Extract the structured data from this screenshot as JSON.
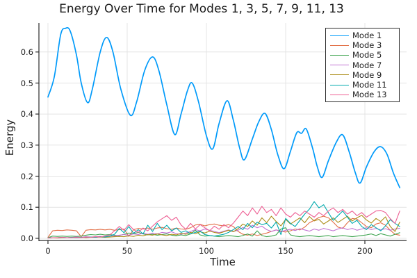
{
  "chart_data": {
    "type": "line",
    "title": "Energy Over Time for Modes 1, 3, 5, 7, 9, 11, 13",
    "xlabel": "Time",
    "ylabel": "Energy",
    "xlim": [
      -5.7,
      226.3
    ],
    "ylim": [
      -0.007,
      0.6935
    ],
    "grid": true,
    "legend_position": "top-right",
    "xticks": {
      "values": [
        0,
        50,
        100,
        150,
        200
      ],
      "labels": [
        "0",
        "50",
        "100",
        "150",
        "200"
      ]
    },
    "yticks": {
      "values": [
        0.0,
        0.1,
        0.2,
        0.3,
        0.4,
        0.5,
        0.6
      ],
      "labels": [
        "0.0",
        "0.1",
        "0.2",
        "0.3",
        "0.4",
        "0.5",
        "0.6"
      ]
    },
    "colors": {
      "grid": "#E4E4E4",
      "axis": "#2B2B2B",
      "text": "#1C1C1C",
      "background": "#FFFFFF"
    },
    "series": [
      {
        "name": "Mode 1",
        "color": "#009AFA",
        "line_width": 1.7,
        "smooth": true,
        "points": [
          [
            0,
            0.455
          ],
          [
            4,
            0.52
          ],
          [
            8,
            0.655
          ],
          [
            11,
            0.676
          ],
          [
            14,
            0.668
          ],
          [
            18,
            0.59
          ],
          [
            21,
            0.5
          ],
          [
            25,
            0.437
          ],
          [
            28,
            0.48
          ],
          [
            33,
            0.6
          ],
          [
            37,
            0.647
          ],
          [
            41,
            0.6
          ],
          [
            46,
            0.48
          ],
          [
            52,
            0.396
          ],
          [
            56,
            0.44
          ],
          [
            61,
            0.54
          ],
          [
            66,
            0.584
          ],
          [
            70,
            0.54
          ],
          [
            75,
            0.43
          ],
          [
            80,
            0.334
          ],
          [
            84,
            0.4
          ],
          [
            88,
            0.475
          ],
          [
            91,
            0.5
          ],
          [
            95,
            0.44
          ],
          [
            100,
            0.33
          ],
          [
            104,
            0.288
          ],
          [
            108,
            0.37
          ],
          [
            113,
            0.443
          ],
          [
            117,
            0.38
          ],
          [
            121,
            0.29
          ],
          [
            124,
            0.253
          ],
          [
            129,
            0.32
          ],
          [
            133,
            0.375
          ],
          [
            137,
            0.402
          ],
          [
            141,
            0.35
          ],
          [
            145,
            0.27
          ],
          [
            149,
            0.224
          ],
          [
            153,
            0.28
          ],
          [
            157,
            0.34
          ],
          [
            160,
            0.338
          ],
          [
            163,
            0.352
          ],
          [
            167,
            0.29
          ],
          [
            170,
            0.23
          ],
          [
            173,
            0.196
          ],
          [
            177,
            0.25
          ],
          [
            182,
            0.31
          ],
          [
            186,
            0.333
          ],
          [
            190,
            0.28
          ],
          [
            194,
            0.21
          ],
          [
            197,
            0.178
          ],
          [
            201,
            0.23
          ],
          [
            206,
            0.28
          ],
          [
            210,
            0.295
          ],
          [
            214,
            0.27
          ],
          [
            218,
            0.21
          ],
          [
            222,
            0.163
          ]
        ]
      },
      {
        "name": "Mode 3",
        "color": "#E26F46",
        "line_width": 1.1,
        "smooth": false,
        "t0": 0,
        "dt": 3,
        "values": [
          0.003,
          0.024,
          0.026,
          0.025,
          0.027,
          0.026,
          0.024,
          0.005,
          0.026,
          0.028,
          0.027,
          0.029,
          0.027,
          0.029,
          0.026,
          0.028,
          0.03,
          0.006,
          0.028,
          0.032,
          0.03,
          0.033,
          0.029,
          0.033,
          0.035,
          0.031,
          0.029,
          0.033,
          0.03,
          0.029,
          0.034,
          0.043,
          0.045,
          0.04,
          0.044,
          0.046,
          0.042,
          0.04,
          0.044,
          0.038,
          0.022,
          0.013,
          0.01,
          0.014,
          0.009,
          0.013,
          0.017,
          0.022,
          0.027,
          0.023,
          0.02,
          0.024,
          0.03,
          0.027,
          0.036,
          0.05,
          0.058,
          0.067,
          0.071,
          0.066,
          0.052,
          0.036,
          0.032,
          0.05,
          0.064,
          0.062,
          0.05,
          0.038,
          0.034,
          0.046,
          0.05,
          0.042,
          0.026,
          0.013,
          0.01
        ]
      },
      {
        "name": "Mode 5",
        "color": "#3DA44E",
        "line_width": 1.1,
        "smooth": false,
        "t0": 0,
        "dt": 3,
        "values": [
          0.002,
          0.007,
          0.006,
          0.007,
          0.006,
          0.007,
          0.006,
          0.007,
          0.01,
          0.012,
          0.011,
          0.013,
          0.011,
          0.012,
          0.01,
          0.009,
          0.013,
          0.017,
          0.015,
          0.019,
          0.014,
          0.011,
          0.013,
          0.01,
          0.012,
          0.014,
          0.01,
          0.008,
          0.011,
          0.009,
          0.014,
          0.026,
          0.011,
          0.007,
          0.009,
          0.007,
          0.005,
          0.007,
          0.009,
          0.007,
          0.005,
          0.009,
          0.014,
          0.007,
          0.024,
          0.009,
          0.005,
          0.007,
          0.011,
          0.03,
          0.034,
          0.011,
          0.007,
          0.005,
          0.007,
          0.009,
          0.007,
          0.005,
          0.007,
          0.009,
          0.005,
          0.007,
          0.009,
          0.007,
          0.005,
          0.007,
          0.009,
          0.011,
          0.014,
          0.009,
          0.015,
          0.011,
          0.007,
          0.013,
          0.018
        ]
      },
      {
        "name": "Mode 7",
        "color": "#C271D2",
        "line_width": 1.1,
        "smooth": false,
        "t0": 0,
        "dt": 3,
        "values": [
          0.001,
          0.002,
          0.002,
          0.003,
          0.002,
          0.003,
          0.004,
          0.003,
          0.005,
          0.004,
          0.005,
          0.006,
          0.005,
          0.007,
          0.008,
          0.01,
          0.012,
          0.01,
          0.014,
          0.012,
          0.016,
          0.013,
          0.017,
          0.014,
          0.019,
          0.017,
          0.021,
          0.015,
          0.013,
          0.017,
          0.022,
          0.028,
          0.024,
          0.03,
          0.026,
          0.022,
          0.018,
          0.023,
          0.027,
          0.022,
          0.026,
          0.035,
          0.029,
          0.042,
          0.034,
          0.039,
          0.028,
          0.022,
          0.027,
          0.021,
          0.026,
          0.029,
          0.025,
          0.031,
          0.027,
          0.023,
          0.03,
          0.026,
          0.032,
          0.028,
          0.024,
          0.03,
          0.034,
          0.028,
          0.032,
          0.026,
          0.03,
          0.034,
          0.028,
          0.032,
          0.027,
          0.031,
          0.026,
          0.03,
          0.032
        ]
      },
      {
        "name": "Mode 9",
        "color": "#AC8D18",
        "line_width": 1.1,
        "smooth": false,
        "t0": 0,
        "dt": 3,
        "values": [
          0.001,
          0.002,
          0.001,
          0.002,
          0.002,
          0.003,
          0.002,
          0.003,
          0.002,
          0.003,
          0.003,
          0.004,
          0.003,
          0.004,
          0.005,
          0.006,
          0.005,
          0.008,
          0.006,
          0.01,
          0.008,
          0.012,
          0.01,
          0.014,
          0.011,
          0.009,
          0.013,
          0.011,
          0.016,
          0.013,
          0.019,
          0.015,
          0.021,
          0.017,
          0.023,
          0.019,
          0.016,
          0.021,
          0.026,
          0.021,
          0.031,
          0.046,
          0.038,
          0.056,
          0.042,
          0.066,
          0.05,
          0.071,
          0.054,
          0.04,
          0.061,
          0.046,
          0.056,
          0.066,
          0.05,
          0.07,
          0.056,
          0.061,
          0.046,
          0.056,
          0.066,
          0.051,
          0.061,
          0.071,
          0.056,
          0.066,
          0.074,
          0.059,
          0.049,
          0.064,
          0.054,
          0.069,
          0.038,
          0.022,
          0.052
        ]
      },
      {
        "name": "Mode 11",
        "color": "#00A9AD",
        "line_width": 1.1,
        "smooth": false,
        "t0": 0,
        "dt": 3,
        "values": [
          0.001,
          0.002,
          0.002,
          0.003,
          0.002,
          0.003,
          0.002,
          0.003,
          0.003,
          0.004,
          0.003,
          0.005,
          0.004,
          0.007,
          0.013,
          0.032,
          0.018,
          0.038,
          0.016,
          0.028,
          0.014,
          0.042,
          0.022,
          0.048,
          0.028,
          0.042,
          0.024,
          0.033,
          0.019,
          0.024,
          0.014,
          0.019,
          0.023,
          0.012,
          0.009,
          0.007,
          0.01,
          0.013,
          0.019,
          0.028,
          0.038,
          0.028,
          0.048,
          0.034,
          0.052,
          0.044,
          0.048,
          0.033,
          0.052,
          0.012,
          0.064,
          0.048,
          0.038,
          0.058,
          0.078,
          0.094,
          0.118,
          0.098,
          0.108,
          0.082,
          0.058,
          0.073,
          0.088,
          0.068,
          0.048,
          0.058,
          0.038,
          0.028,
          0.044,
          0.034,
          0.024,
          0.04,
          0.06,
          0.048,
          0.038
        ]
      },
      {
        "name": "Mode 13",
        "color": "#ED5E93",
        "line_width": 1.1,
        "smooth": false,
        "t0": 0,
        "dt": 3,
        "values": [
          0.001,
          0.002,
          0.002,
          0.003,
          0.002,
          0.002,
          0.003,
          0.002,
          0.004,
          0.003,
          0.005,
          0.004,
          0.007,
          0.011,
          0.024,
          0.038,
          0.026,
          0.044,
          0.028,
          0.019,
          0.033,
          0.024,
          0.039,
          0.053,
          0.063,
          0.073,
          0.058,
          0.068,
          0.043,
          0.029,
          0.048,
          0.03,
          0.044,
          0.034,
          0.024,
          0.039,
          0.029,
          0.044,
          0.034,
          0.049,
          0.068,
          0.088,
          0.073,
          0.098,
          0.078,
          0.103,
          0.083,
          0.093,
          0.073,
          0.098,
          0.078,
          0.068,
          0.083,
          0.073,
          0.088,
          0.078,
          0.068,
          0.083,
          0.073,
          0.088,
          0.098,
          0.083,
          0.093,
          0.078,
          0.088,
          0.073,
          0.083,
          0.068,
          0.078,
          0.088,
          0.09,
          0.083,
          0.063,
          0.048,
          0.088
        ]
      }
    ]
  }
}
